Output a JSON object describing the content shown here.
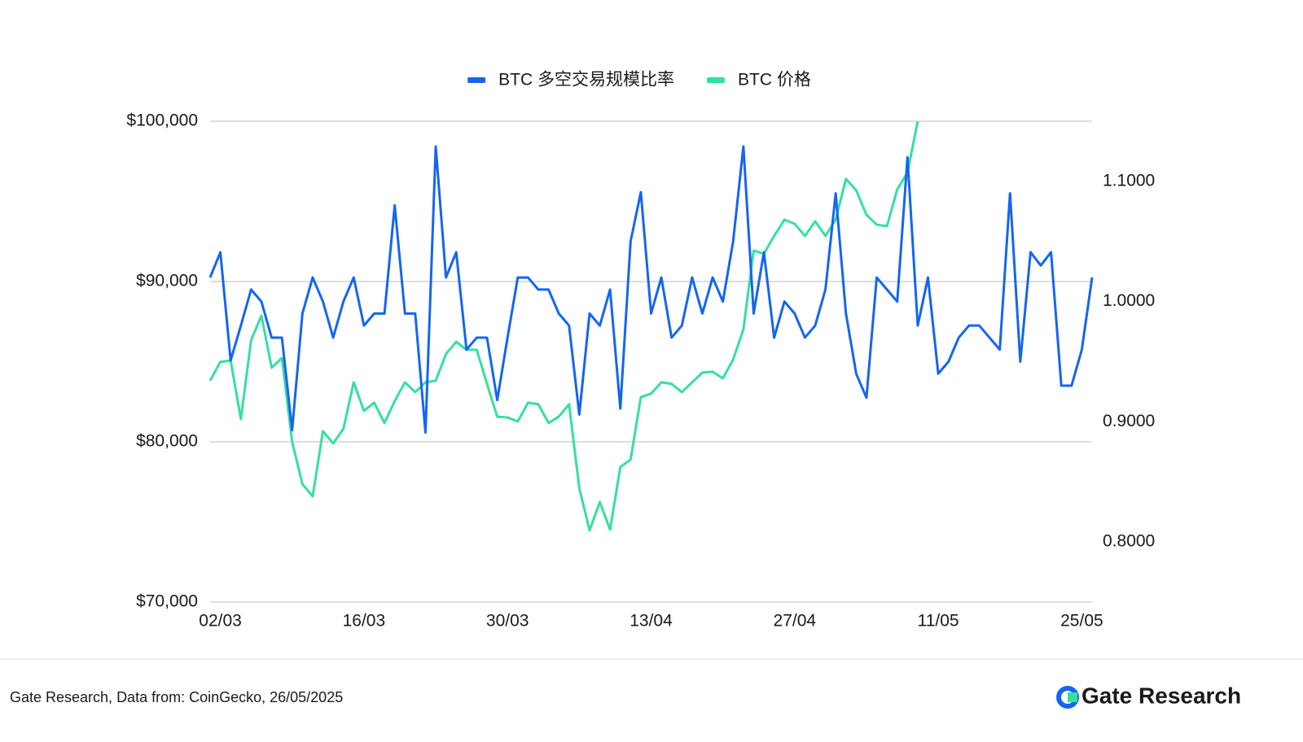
{
  "chart_data": {
    "type": "line",
    "categories": [
      null,
      "02/03",
      null,
      null,
      null,
      null,
      null,
      null,
      null,
      null,
      null,
      null,
      null,
      null,
      null,
      "16/03",
      null,
      null,
      null,
      null,
      null,
      null,
      null,
      null,
      null,
      null,
      null,
      null,
      null,
      "30/03",
      null,
      null,
      null,
      null,
      null,
      null,
      null,
      null,
      null,
      null,
      null,
      null,
      null,
      "13/04",
      null,
      null,
      null,
      null,
      null,
      null,
      null,
      null,
      null,
      null,
      null,
      null,
      null,
      "27/04",
      null,
      null,
      null,
      null,
      null,
      null,
      null,
      null,
      null,
      null,
      null,
      null,
      null,
      "11/05",
      null,
      null,
      null,
      null,
      null,
      null,
      null,
      null,
      null,
      null,
      null,
      null,
      null,
      "25/05",
      null
    ],
    "series": [
      {
        "name": "BTC 多空交易规模比率",
        "color": "#1466f0",
        "axis": "y2",
        "values": [
          1.02,
          1.041,
          0.951,
          0.98,
          1.01,
          1.0,
          0.97,
          0.97,
          0.893,
          0.99,
          1.02,
          1.0,
          0.97,
          1.0,
          1.02,
          0.98,
          0.99,
          0.99,
          1.08,
          0.99,
          0.99,
          0.891,
          1.129,
          1.02,
          1.041,
          0.96,
          0.97,
          0.97,
          0.918,
          0.97,
          1.02,
          1.02,
          1.01,
          1.01,
          0.99,
          0.98,
          0.906,
          0.99,
          0.98,
          1.01,
          0.911,
          1.05,
          1.091,
          0.99,
          1.02,
          0.97,
          0.98,
          1.02,
          0.99,
          1.02,
          1.0,
          1.05,
          1.129,
          0.99,
          1.041,
          0.97,
          1.0,
          0.99,
          0.97,
          0.98,
          1.01,
          1.09,
          0.99,
          0.94,
          0.92,
          1.02,
          1.01,
          1.0,
          1.12,
          0.98,
          1.02,
          0.94,
          0.95,
          0.97,
          0.98,
          0.98,
          0.97,
          0.96,
          1.09,
          0.95,
          1.041,
          1.03,
          1.041,
          0.93,
          0.93,
          0.96,
          1.02
        ]
      },
      {
        "name": "BTC 价格",
        "color": "#34e0a1",
        "values": [
          83810,
          84980,
          85080,
          81420,
          86350,
          87870,
          84620,
          85230,
          80000,
          77360,
          76600,
          80660,
          79900,
          80810,
          83710,
          81930,
          82440,
          81170,
          82540,
          83710,
          83100,
          83710,
          83810,
          85480,
          86240,
          85740,
          85740,
          83610,
          81570,
          81520,
          81270,
          82440,
          82340,
          81170,
          81570,
          82340,
          77110,
          74470,
          76240,
          74520,
          78430,
          78880,
          82790,
          83000,
          83710,
          83610,
          83100,
          83710,
          84320,
          84370,
          83960,
          85130,
          87010,
          91930,
          91730,
          92840,
          93860,
          93600,
          92840,
          93760,
          92840,
          93860,
          96400,
          95690,
          94160,
          93550,
          93450,
          95740,
          96800,
          100000,
          null,
          null,
          null,
          null,
          null,
          null,
          null,
          null,
          null,
          null,
          null,
          null,
          null,
          null,
          null,
          null,
          null
        ]
      }
    ],
    "ylim": [
      70000,
      100000
    ],
    "yticks": [
      {
        "value": 70000,
        "label": "$70,000"
      },
      {
        "value": 80000,
        "label": "$80,000"
      },
      {
        "value": 90000,
        "label": "$90,000"
      },
      {
        "value": 100000,
        "label": "$100,000"
      }
    ],
    "y2lim": [
      0.75,
      1.15
    ],
    "y2ticks": [
      {
        "value": 0.8,
        "label": "0.8000"
      },
      {
        "value": 0.9,
        "label": "0.9000"
      },
      {
        "value": 1.0,
        "label": "1.0000"
      },
      {
        "value": 1.1,
        "label": "1.1000"
      }
    ],
    "grid": true,
    "legend": "top",
    "source": "Gate Research, Data from: CoinGecko, 26/05/2025",
    "brand": "Gate Research"
  }
}
